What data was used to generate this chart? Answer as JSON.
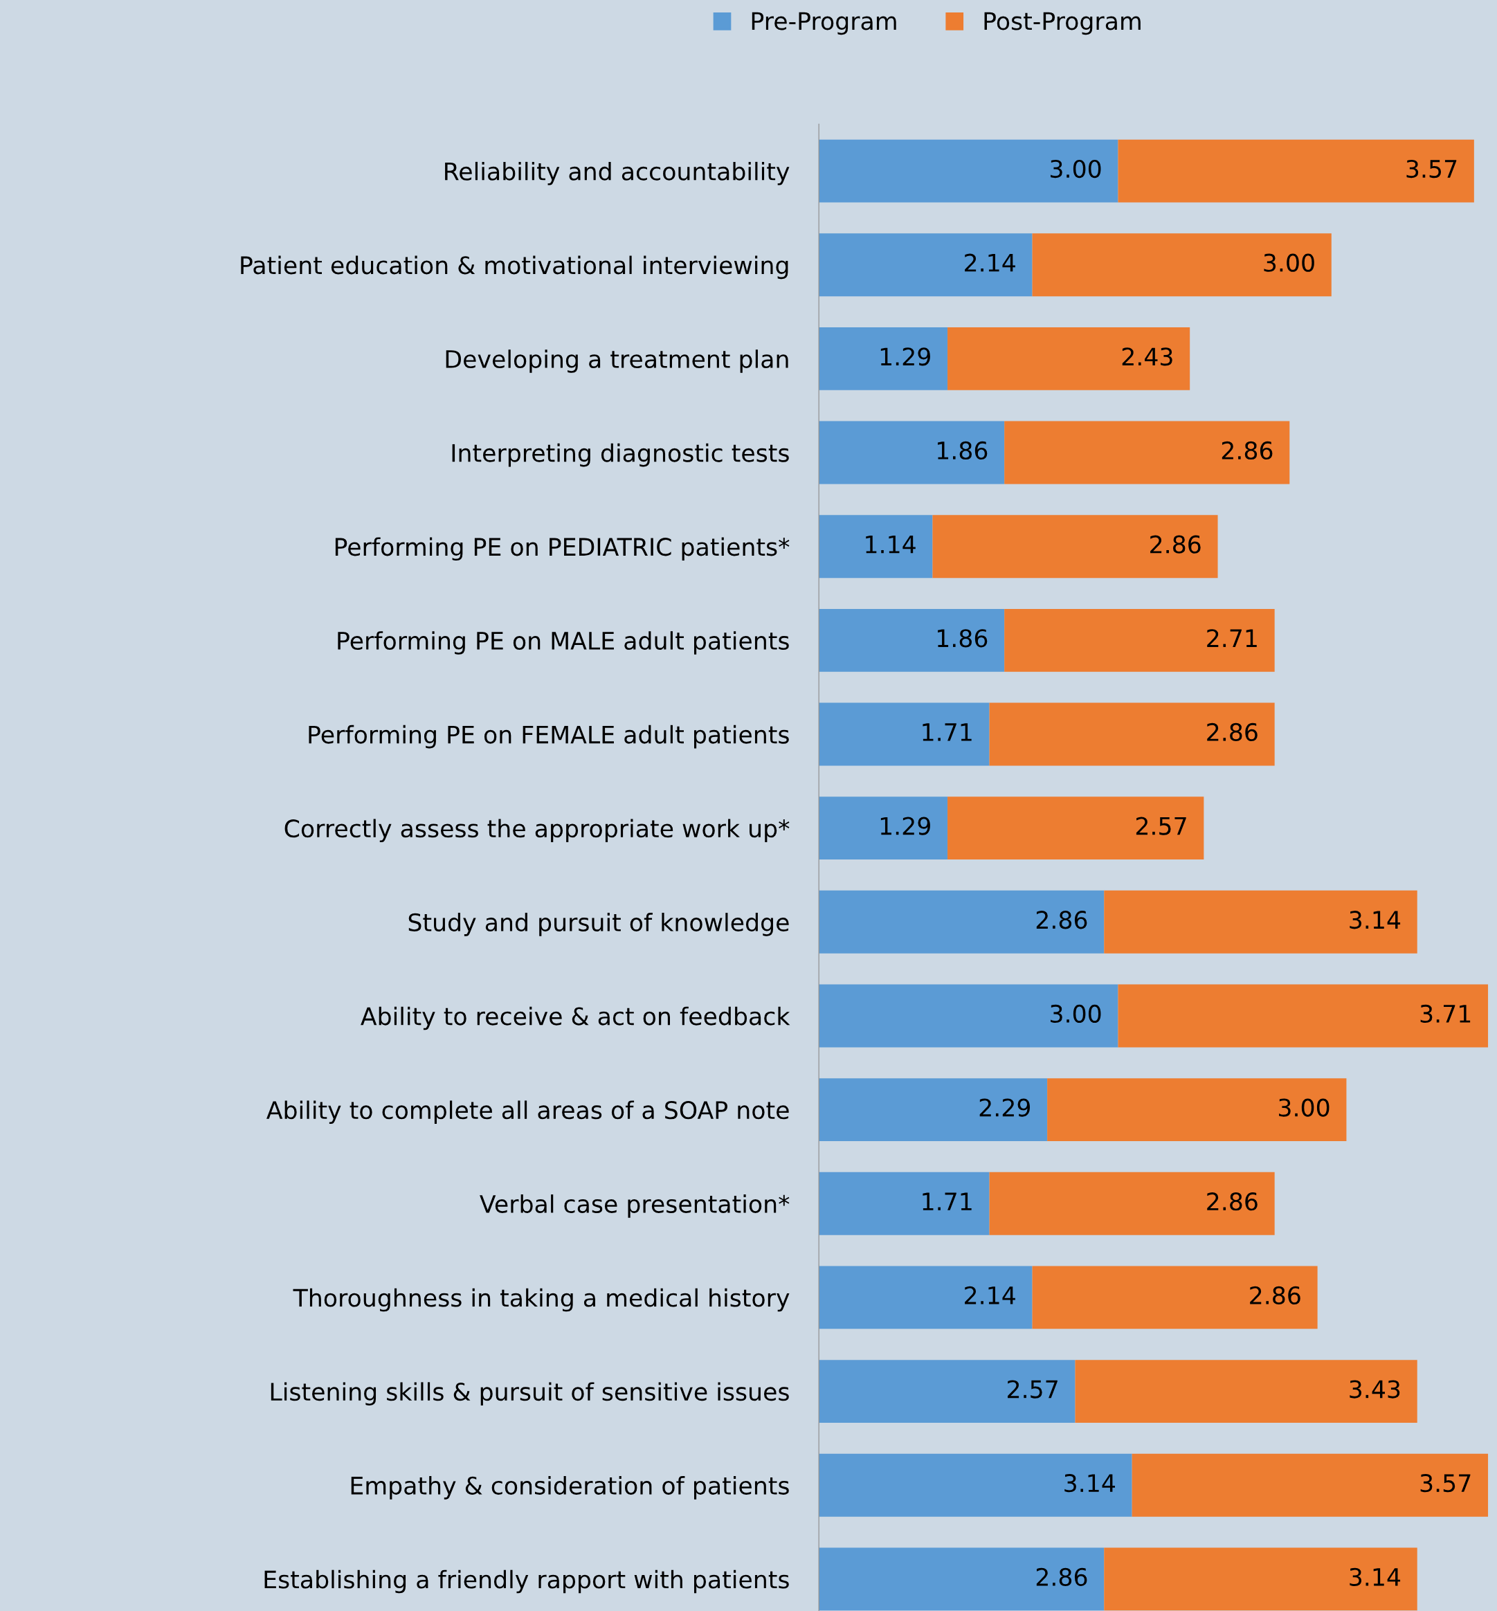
{
  "chart_data": {
    "type": "bar",
    "orientation": "horizontal",
    "stacked": true,
    "legend": "top",
    "grid": false,
    "xlim": [
      0,
      6.8
    ],
    "categories": [
      "Reliability and accountability",
      "Patient education & motivational interviewing",
      "Developing a treatment plan",
      "Interpreting diagnostic tests",
      "Performing PE on PEDIATRIC patients*",
      "Performing PE on MALE adult patients",
      "Performing PE on FEMALE adult patients",
      "Correctly assess the appropriate work up*",
      "Study and pursuit of knowledge",
      "Ability to receive & act on feedback",
      "Ability to complete all areas of a SOAP note",
      "Verbal case presentation*",
      "Thoroughness in taking a medical history",
      "Listening skills & pursuit of sensitive issues",
      "Empathy & consideration of patients",
      "Establishing a friendly rapport with patients"
    ],
    "series": [
      {
        "name": "Pre-Program",
        "color": "#5b9bd5",
        "values": [
          3.0,
          2.14,
          1.29,
          1.86,
          1.14,
          1.86,
          1.71,
          1.29,
          2.86,
          3.0,
          2.29,
          1.71,
          2.14,
          2.57,
          3.14,
          2.86
        ],
        "value_labels": [
          "3.00",
          "2.14",
          "1.29",
          "1.86",
          "1.14",
          "1.86",
          "1.71",
          "1.29",
          "2.86",
          "3.00",
          "2.29",
          "1.71",
          "2.14",
          "2.57",
          "3.14",
          "2.86"
        ]
      },
      {
        "name": "Post-Program",
        "color": "#ed7d31",
        "values": [
          3.57,
          3.0,
          2.43,
          2.86,
          2.86,
          2.71,
          2.86,
          2.57,
          3.14,
          3.71,
          3.0,
          2.86,
          2.86,
          3.43,
          3.57,
          3.14
        ],
        "value_labels": [
          "3.57",
          "3.00",
          "2.43",
          "2.86",
          "2.86",
          "2.71",
          "2.86",
          "2.57",
          "3.14",
          "3.71",
          "3.00",
          "2.86",
          "2.86",
          "3.43",
          "3.57",
          "3.14"
        ]
      }
    ]
  }
}
